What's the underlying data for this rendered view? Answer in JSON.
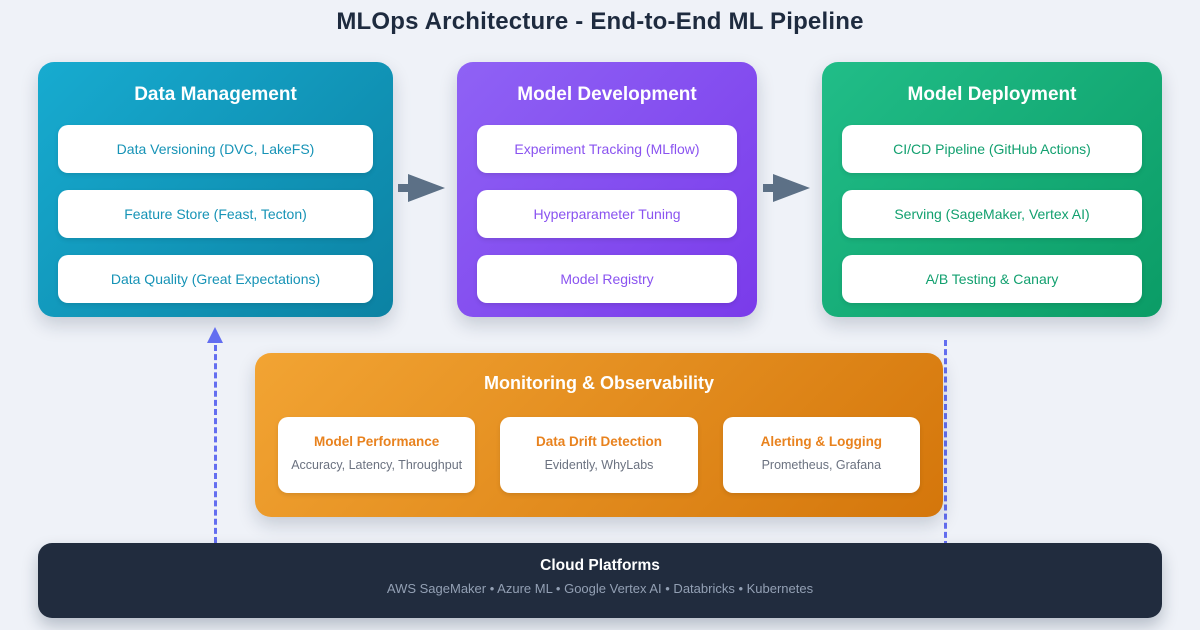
{
  "page": {
    "title": "MLOps Architecture - End-to-End ML Pipeline"
  },
  "pipeline_cards": [
    {
      "title": "Data Management",
      "items": [
        "Data Versioning (DVC, LakeFS)",
        "Feature Store (Feast, Tecton)",
        "Data Quality (Great Expectations)"
      ],
      "gradient_start": "#17abd0",
      "gradient_end": "#0c82a3",
      "item_text_color": "#1693b6"
    },
    {
      "title": "Model Development",
      "items": [
        "Experiment Tracking (MLflow)",
        "Hyperparameter Tuning",
        "Model Registry"
      ],
      "gradient_start": "#8f62f5",
      "gradient_end": "#7a3bea",
      "item_text_color": "#8a53f0"
    },
    {
      "title": "Model Deployment",
      "items": [
        "CI/CD Pipeline (GitHub Actions)",
        "Serving (SageMaker, Vertex AI)",
        "A/B Testing & Canary"
      ],
      "gradient_start": "#21bd88",
      "gradient_end": "#0b9c66",
      "item_text_color": "#12a06f"
    }
  ],
  "monitoring": {
    "title": "Monitoring & Observability",
    "gradient_start": "#f2a433",
    "gradient_end": "#d4760b",
    "boxes": [
      {
        "title": "Model Performance",
        "subtitle": "Accuracy, Latency, Throughput"
      },
      {
        "title": "Data Drift Detection",
        "subtitle": "Evidently, WhyLabs"
      },
      {
        "title": "Alerting & Logging",
        "subtitle": "Prometheus, Grafana"
      }
    ],
    "box_title_color": "#e8821e",
    "box_subtitle_color": "#6b7280"
  },
  "cloud_platforms": {
    "title": "Cloud Platforms",
    "subtitle": "AWS SageMaker • Azure ML • Google Vertex AI • Databricks • Kubernetes",
    "background": "#212c3e",
    "subtitle_color": "#93a0b4"
  },
  "connectors": {
    "flow_arrow_color": "#5c7086",
    "dashed_line_color": "#636ef0"
  }
}
